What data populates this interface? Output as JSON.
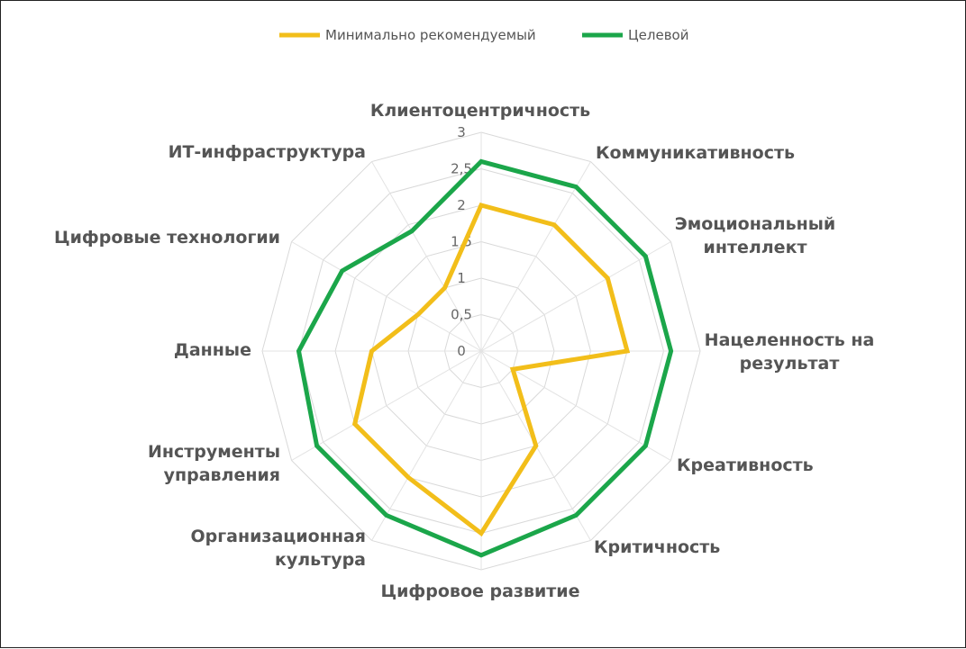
{
  "chart_data": {
    "type": "radar",
    "title": "",
    "categories": [
      "Клиентоцентричность",
      "Коммуникативность",
      "Эмоциональный интеллект",
      "Нацеленность на результат",
      "Креативность",
      "Критичность",
      "Цифровое развитие",
      "Организационная культура",
      "Инструменты управления",
      "Данные",
      "Цифровые технологии",
      "ИТ-инфраструктура"
    ],
    "category_lines": [
      [
        "Клиентоцентричность"
      ],
      [
        "Коммуникативность"
      ],
      [
        "Эмоциональный",
        "интеллект"
      ],
      [
        "Нацеленность на",
        "результат"
      ],
      [
        "Креативность"
      ],
      [
        "Критичность"
      ],
      [
        "Цифровое развитие"
      ],
      [
        "Организационная",
        "культура"
      ],
      [
        "Инструменты",
        "управления"
      ],
      [
        "Данные"
      ],
      [
        "Цифровые технологии"
      ],
      [
        "ИТ-инфраструктура"
      ]
    ],
    "series": [
      {
        "name": "Минимально рекомендуемый",
        "color": "#F2BE1A",
        "values": [
          2,
          2,
          2,
          2,
          0.5,
          1.5,
          2.5,
          2,
          2,
          1.5,
          1,
          1
        ]
      },
      {
        "name": "Целевой",
        "color": "#1BA64A",
        "values": [
          2.6,
          2.6,
          2.6,
          2.6,
          2.6,
          2.6,
          2.8,
          2.6,
          2.6,
          2.5,
          2.2,
          1.9
        ]
      }
    ],
    "r_range": [
      0,
      3
    ],
    "ticks": [
      "0",
      "0,5",
      "1",
      "1,5",
      "2",
      "2,5",
      "3"
    ],
    "tick_values": [
      0,
      0.5,
      1,
      1.5,
      2,
      2.5,
      3
    ],
    "grid": true,
    "legend_position": "top"
  }
}
